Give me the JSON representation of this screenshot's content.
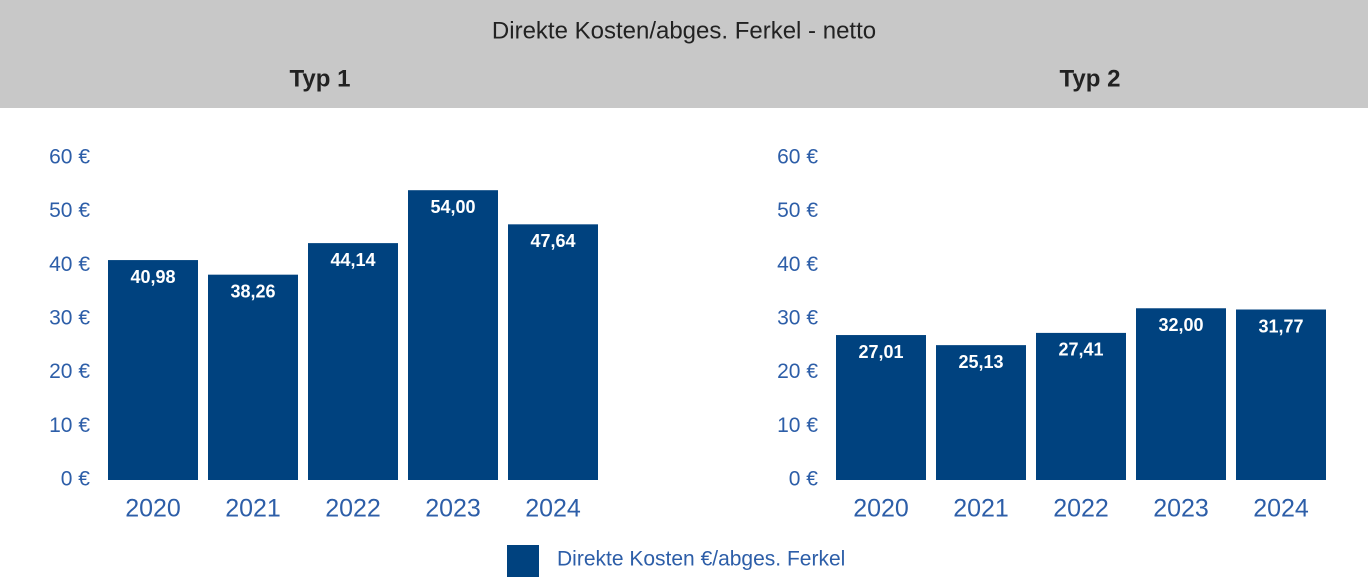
{
  "title": "Direkte Kosten/abges. Ferkel - netto",
  "chart_data": [
    {
      "type": "bar",
      "title": "Typ 1",
      "categories": [
        "2020",
        "2021",
        "2022",
        "2023",
        "2024"
      ],
      "values": [
        40.98,
        38.26,
        44.14,
        54.0,
        47.64
      ],
      "value_labels": [
        "40,98",
        "38,26",
        "44,14",
        "54,00",
        "47,64"
      ],
      "color": "#00427f",
      "ylim": [
        0,
        60
      ],
      "yticks": [
        {
          "value": 0,
          "label": "0 €"
        },
        {
          "value": 10,
          "label": "10 €"
        },
        {
          "value": 20,
          "label": "20 €"
        },
        {
          "value": 30,
          "label": "30 €"
        },
        {
          "value": 40,
          "label": "40 €"
        },
        {
          "value": 50,
          "label": "50 €"
        },
        {
          "value": 60,
          "label": "60 €"
        }
      ]
    },
    {
      "type": "bar",
      "title": "Typ 2",
      "categories": [
        "2020",
        "2021",
        "2022",
        "2023",
        "2024"
      ],
      "values": [
        27.01,
        25.13,
        27.41,
        32.0,
        31.77
      ],
      "value_labels": [
        "27,01",
        "25,13",
        "27,41",
        "32,00",
        "31,77"
      ],
      "color": "#00427f",
      "ylim": [
        0,
        60
      ],
      "yticks": [
        {
          "value": 0,
          "label": "0 €"
        },
        {
          "value": 10,
          "label": "10 €"
        },
        {
          "value": 20,
          "label": "20 €"
        },
        {
          "value": 30,
          "label": "30 €"
        },
        {
          "value": 40,
          "label": "40 €"
        },
        {
          "value": 50,
          "label": "50 €"
        },
        {
          "value": 60,
          "label": "60 €"
        }
      ]
    }
  ],
  "legend": {
    "name": "Direkte Kosten €/abges. Ferkel",
    "color": "#00427f"
  }
}
